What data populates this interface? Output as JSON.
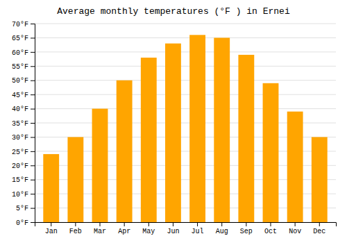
{
  "chart_data": {
    "type": "bar",
    "title": "Average monthly temperatures (°F ) in Ernei",
    "categories": [
      "Jan",
      "Feb",
      "Mar",
      "Apr",
      "May",
      "Jun",
      "Jul",
      "Aug",
      "Sep",
      "Oct",
      "Nov",
      "Dec"
    ],
    "values": [
      24,
      30,
      40,
      50,
      58,
      63,
      66,
      65,
      59,
      49,
      39,
      30
    ],
    "color": "#FFA500",
    "ylim": [
      0,
      70
    ],
    "yticks": [
      {
        "value": 0,
        "label": "0°F"
      },
      {
        "value": 5,
        "label": "5°F"
      },
      {
        "value": 10,
        "label": "10°F"
      },
      {
        "value": 15,
        "label": "15°F"
      },
      {
        "value": 20,
        "label": "20°F"
      },
      {
        "value": 25,
        "label": "25°F"
      },
      {
        "value": 30,
        "label": "30°F"
      },
      {
        "value": 35,
        "label": "35°F"
      },
      {
        "value": 40,
        "label": "40°F"
      },
      {
        "value": 45,
        "label": "45°F"
      },
      {
        "value": 50,
        "label": "50°F"
      },
      {
        "value": 55,
        "label": "55°F"
      },
      {
        "value": 60,
        "label": "60°F"
      },
      {
        "value": 65,
        "label": "65°F"
      },
      {
        "value": 70,
        "label": "70°F"
      }
    ],
    "grid": true
  }
}
